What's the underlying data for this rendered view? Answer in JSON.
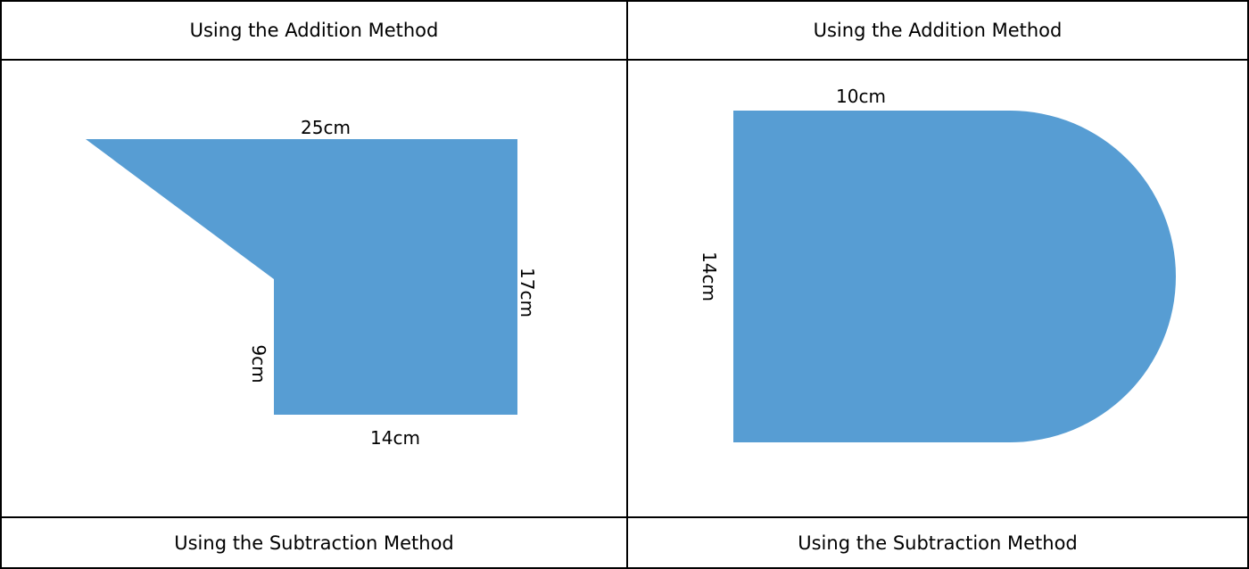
{
  "table": {
    "top_left_header": "Using the Addition Method",
    "top_right_header": "Using the Addition Method",
    "bottom_left_header": "Using the Subtraction Method",
    "bottom_right_header": "Using the Subtraction Method"
  },
  "shape_left": {
    "fill": "#579dd3",
    "top_label": "25cm",
    "right_label": "17cm",
    "left_label": "9cm",
    "bottom_label": "14cm"
  },
  "shape_right": {
    "fill": "#579dd3",
    "top_label": "10cm",
    "left_label": "14cm"
  },
  "colors": {
    "border": "#000000",
    "shape_fill": "#579dd3"
  }
}
